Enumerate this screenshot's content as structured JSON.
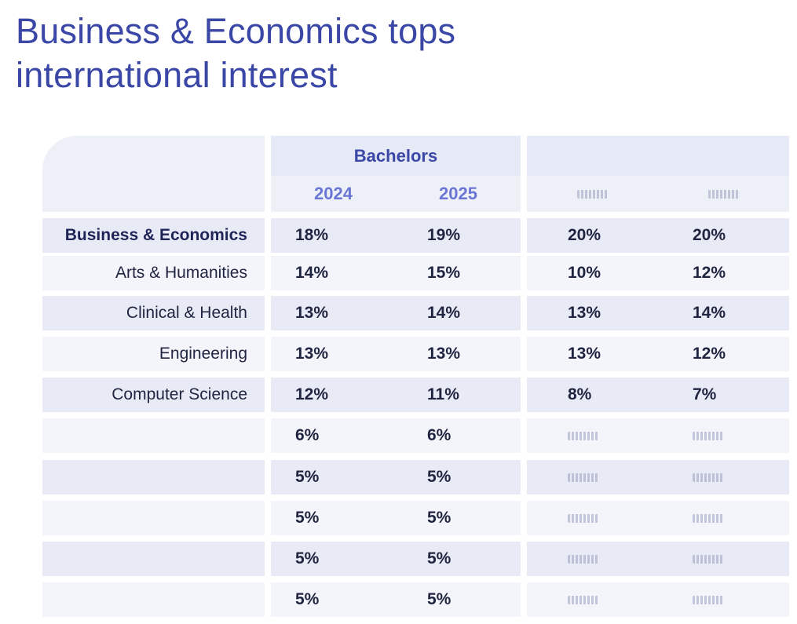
{
  "title_line1": "Business & Economics tops",
  "title_line2": "international interest",
  "header": {
    "group1_label": "Bachelors",
    "group1_years": [
      "2024",
      "2025"
    ]
  },
  "rows": [
    {
      "subject": "Business & Economics",
      "bold": true,
      "values": [
        "18%",
        "19%",
        "20%",
        "20%"
      ]
    },
    {
      "subject": "Arts & Humanities",
      "bold": false,
      "values": [
        "14%",
        "15%",
        "10%",
        "12%"
      ]
    },
    {
      "subject": "Clinical & Health",
      "bold": false,
      "values": [
        "13%",
        "14%",
        "13%",
        "14%"
      ]
    },
    {
      "subject": "Engineering",
      "bold": false,
      "values": [
        "13%",
        "13%",
        "13%",
        "12%"
      ]
    },
    {
      "subject": "Computer Science",
      "bold": false,
      "values": [
        "12%",
        "11%",
        "8%",
        "7%"
      ]
    },
    {
      "subject": "",
      "bold": false,
      "values": [
        "6%",
        "6%",
        "",
        ""
      ]
    },
    {
      "subject": "",
      "bold": false,
      "values": [
        "5%",
        "5%",
        "",
        ""
      ]
    },
    {
      "subject": "",
      "bold": false,
      "values": [
        "5%",
        "5%",
        "",
        ""
      ]
    },
    {
      "subject": "",
      "bold": false,
      "values": [
        "5%",
        "5%",
        "",
        ""
      ]
    },
    {
      "subject": "",
      "bold": false,
      "values": [
        "5%",
        "5%",
        "",
        ""
      ]
    }
  ],
  "colors": {
    "title": "#3b47a6",
    "year_header": "#6b76d4",
    "row_dark": "#e8eaf5",
    "row_light": "#f4f5fb"
  }
}
